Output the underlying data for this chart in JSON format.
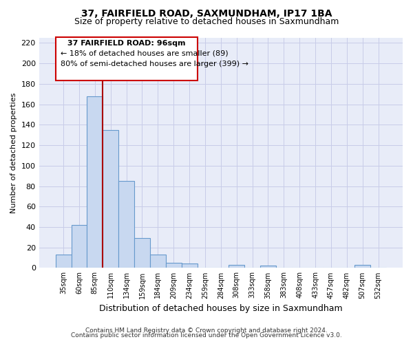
{
  "title1": "37, FAIRFIELD ROAD, SAXMUNDHAM, IP17 1BA",
  "title2": "Size of property relative to detached houses in Saxmundham",
  "xlabel": "Distribution of detached houses by size in Saxmundham",
  "ylabel": "Number of detached properties",
  "categories": [
    "35sqm",
    "60sqm",
    "85sqm",
    "110sqm",
    "134sqm",
    "159sqm",
    "184sqm",
    "209sqm",
    "234sqm",
    "259sqm",
    "284sqm",
    "308sqm",
    "333sqm",
    "358sqm",
    "383sqm",
    "408sqm",
    "433sqm",
    "457sqm",
    "482sqm",
    "507sqm",
    "532sqm"
  ],
  "values": [
    13,
    42,
    168,
    135,
    85,
    29,
    13,
    5,
    4,
    0,
    0,
    3,
    0,
    2,
    0,
    0,
    0,
    0,
    0,
    3,
    0
  ],
  "bar_color": "#c8d8f0",
  "bar_edge_color": "#6699cc",
  "vline_x": 2.5,
  "vline_color": "#aa0000",
  "ylim": [
    0,
    225
  ],
  "yticks": [
    0,
    20,
    40,
    60,
    80,
    100,
    120,
    140,
    160,
    180,
    200,
    220
  ],
  "annotation_title": "37 FAIRFIELD ROAD: 96sqm",
  "annotation_line1": "← 18% of detached houses are smaller (89)",
  "annotation_line2": "80% of semi-detached houses are larger (399) →",
  "annotation_box_color": "#cc0000",
  "footer1": "Contains HM Land Registry data © Crown copyright and database right 2024.",
  "footer2": "Contains public sector information licensed under the Open Government Licence v3.0.",
  "grid_color": "#c8cce8",
  "bg_color": "#e8ecf8"
}
